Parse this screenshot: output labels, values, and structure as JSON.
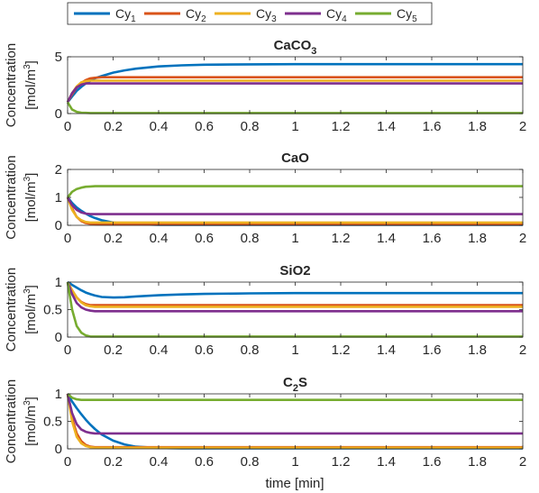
{
  "legend": [
    {
      "base": "Cy",
      "sub": "1"
    },
    {
      "base": "Cy",
      "sub": "2"
    },
    {
      "base": "Cy",
      "sub": "3"
    },
    {
      "base": "Cy",
      "sub": "4"
    },
    {
      "base": "Cy",
      "sub": "5"
    }
  ],
  "xlabel": "time [min]",
  "ylabel_line1": "Concentration",
  "ylabel_line2_base": "[mol/m",
  "ylabel_line2_sup": "3",
  "ylabel_line2_end": "]",
  "colors": [
    "#0072BD",
    "#D95319",
    "#EDB120",
    "#7E2F8E",
    "#77AC30"
  ],
  "chart_data": [
    {
      "type": "line",
      "title": "CaCO",
      "title_sub": "3",
      "title_tail": "",
      "xlim": [
        0,
        2
      ],
      "ylim": [
        0,
        5
      ],
      "yticks": [
        0,
        5
      ],
      "xticks": [
        0,
        0.2,
        0.4,
        0.6,
        0.8,
        1,
        1.2,
        1.4,
        1.6,
        1.8,
        2
      ],
      "x": [
        0,
        0.02,
        0.04,
        0.06,
        0.08,
        0.1,
        0.12,
        0.15,
        0.2,
        0.25,
        0.3,
        0.4,
        0.5,
        0.6,
        0.8,
        1,
        1.2,
        1.4,
        1.6,
        1.8,
        2
      ],
      "series": [
        {
          "values": [
            1.0,
            1.5,
            2.0,
            2.35,
            2.65,
            2.9,
            3.1,
            3.3,
            3.6,
            3.8,
            3.95,
            4.15,
            4.25,
            4.3,
            4.33,
            4.35,
            4.35,
            4.35,
            4.35,
            4.35,
            4.35
          ]
        },
        {
          "values": [
            1.0,
            1.7,
            2.3,
            2.7,
            2.95,
            3.1,
            3.15,
            3.2,
            3.2,
            3.2,
            3.2,
            3.2,
            3.2,
            3.2,
            3.2,
            3.2,
            3.2,
            3.2,
            3.2,
            3.2,
            3.2
          ]
        },
        {
          "values": [
            1.0,
            1.8,
            2.4,
            2.75,
            2.85,
            2.9,
            2.9,
            2.9,
            2.9,
            2.9,
            2.9,
            2.9,
            2.9,
            2.9,
            2.9,
            2.9,
            2.9,
            2.9,
            2.9,
            2.9,
            2.9
          ]
        },
        {
          "values": [
            1.0,
            1.8,
            2.3,
            2.55,
            2.65,
            2.65,
            2.65,
            2.65,
            2.65,
            2.65,
            2.65,
            2.65,
            2.65,
            2.65,
            2.65,
            2.65,
            2.65,
            2.65,
            2.65,
            2.65,
            2.65
          ]
        },
        {
          "values": [
            1.0,
            0.35,
            0.15,
            0.08,
            0.06,
            0.05,
            0.05,
            0.05,
            0.05,
            0.05,
            0.05,
            0.05,
            0.05,
            0.05,
            0.05,
            0.05,
            0.05,
            0.05,
            0.05,
            0.05,
            0.05
          ]
        }
      ]
    },
    {
      "type": "line",
      "title": "CaO",
      "title_sub": "",
      "title_tail": "",
      "xlim": [
        0,
        2
      ],
      "ylim": [
        0,
        2
      ],
      "yticks": [
        0,
        1,
        2
      ],
      "xticks": [
        0,
        0.2,
        0.4,
        0.6,
        0.8,
        1,
        1.2,
        1.4,
        1.6,
        1.8,
        2
      ],
      "x": [
        0,
        0.02,
        0.04,
        0.06,
        0.08,
        0.1,
        0.12,
        0.15,
        0.2,
        0.25,
        0.3,
        0.4,
        0.5,
        0.6,
        0.8,
        1,
        1.2,
        1.4,
        1.6,
        1.8,
        2
      ],
      "series": [
        {
          "values": [
            1.0,
            0.8,
            0.64,
            0.52,
            0.42,
            0.33,
            0.26,
            0.18,
            0.1,
            0.06,
            0.04,
            0.02,
            0.02,
            0.02,
            0.02,
            0.02,
            0.02,
            0.02,
            0.02,
            0.02,
            0.02
          ]
        },
        {
          "values": [
            1.0,
            0.6,
            0.3,
            0.15,
            0.08,
            0.05,
            0.04,
            0.03,
            0.03,
            0.03,
            0.03,
            0.03,
            0.03,
            0.03,
            0.03,
            0.03,
            0.03,
            0.03,
            0.03,
            0.03,
            0.03
          ]
        },
        {
          "values": [
            1.0,
            0.55,
            0.3,
            0.18,
            0.12,
            0.1,
            0.1,
            0.1,
            0.1,
            0.1,
            0.1,
            0.1,
            0.1,
            0.1,
            0.1,
            0.1,
            0.1,
            0.1,
            0.1,
            0.1,
            0.1
          ]
        },
        {
          "values": [
            1.0,
            0.72,
            0.55,
            0.46,
            0.42,
            0.4,
            0.4,
            0.4,
            0.4,
            0.4,
            0.4,
            0.4,
            0.4,
            0.4,
            0.4,
            0.4,
            0.4,
            0.4,
            0.4,
            0.4,
            0.4
          ]
        },
        {
          "values": [
            1.0,
            1.2,
            1.3,
            1.35,
            1.38,
            1.39,
            1.4,
            1.4,
            1.4,
            1.4,
            1.4,
            1.4,
            1.4,
            1.4,
            1.4,
            1.4,
            1.4,
            1.4,
            1.4,
            1.4,
            1.4
          ]
        }
      ]
    },
    {
      "type": "line",
      "title": "SiO2",
      "title_sub": "",
      "title_tail": "",
      "xlim": [
        0,
        2
      ],
      "ylim": [
        0,
        1
      ],
      "yticks": [
        0,
        0.5,
        1
      ],
      "xticks": [
        0,
        0.2,
        0.4,
        0.6,
        0.8,
        1,
        1.2,
        1.4,
        1.6,
        1.8,
        2
      ],
      "x": [
        0,
        0.02,
        0.04,
        0.06,
        0.08,
        0.1,
        0.12,
        0.15,
        0.2,
        0.25,
        0.3,
        0.4,
        0.5,
        0.6,
        0.8,
        1,
        1.2,
        1.4,
        1.6,
        1.8,
        2
      ],
      "series": [
        {
          "values": [
            1.0,
            0.95,
            0.9,
            0.85,
            0.81,
            0.78,
            0.755,
            0.73,
            0.72,
            0.725,
            0.74,
            0.76,
            0.775,
            0.785,
            0.795,
            0.8,
            0.8,
            0.8,
            0.8,
            0.8,
            0.8
          ]
        },
        {
          "values": [
            1.0,
            0.85,
            0.72,
            0.64,
            0.6,
            0.58,
            0.58,
            0.58,
            0.58,
            0.58,
            0.58,
            0.58,
            0.58,
            0.58,
            0.58,
            0.58,
            0.58,
            0.58,
            0.58,
            0.58,
            0.58
          ]
        },
        {
          "values": [
            1.0,
            0.85,
            0.72,
            0.63,
            0.58,
            0.56,
            0.55,
            0.55,
            0.55,
            0.55,
            0.55,
            0.55,
            0.55,
            0.55,
            0.55,
            0.55,
            0.55,
            0.55,
            0.55,
            0.55,
            0.55
          ]
        },
        {
          "values": [
            1.0,
            0.78,
            0.62,
            0.54,
            0.5,
            0.48,
            0.47,
            0.47,
            0.47,
            0.47,
            0.47,
            0.47,
            0.47,
            0.47,
            0.47,
            0.47,
            0.47,
            0.47,
            0.47,
            0.47,
            0.47
          ]
        },
        {
          "values": [
            1.0,
            0.5,
            0.2,
            0.08,
            0.03,
            0.01,
            0.01,
            0.01,
            0.01,
            0.01,
            0.01,
            0.01,
            0.01,
            0.01,
            0.01,
            0.01,
            0.01,
            0.01,
            0.01,
            0.01,
            0.01
          ]
        }
      ]
    },
    {
      "type": "line",
      "title": "C",
      "title_sub": "2",
      "title_tail": "S",
      "xlim": [
        0,
        2
      ],
      "ylim": [
        0,
        1
      ],
      "yticks": [
        0,
        0.5,
        1
      ],
      "xticks": [
        0,
        0.2,
        0.4,
        0.6,
        0.8,
        1,
        1.2,
        1.4,
        1.6,
        1.8,
        2
      ],
      "x": [
        0,
        0.02,
        0.04,
        0.06,
        0.08,
        0.1,
        0.12,
        0.15,
        0.2,
        0.25,
        0.3,
        0.4,
        0.5,
        0.6,
        0.8,
        1,
        1.2,
        1.4,
        1.6,
        1.8,
        2
      ],
      "series": [
        {
          "values": [
            1.0,
            0.86,
            0.74,
            0.63,
            0.53,
            0.44,
            0.36,
            0.26,
            0.15,
            0.08,
            0.04,
            0.015,
            0.01,
            0.01,
            0.01,
            0.01,
            0.01,
            0.01,
            0.01,
            0.01,
            0.01
          ]
        },
        {
          "values": [
            1.0,
            0.55,
            0.28,
            0.14,
            0.07,
            0.04,
            0.03,
            0.03,
            0.03,
            0.03,
            0.03,
            0.03,
            0.03,
            0.03,
            0.03,
            0.03,
            0.03,
            0.03,
            0.03,
            0.03,
            0.03
          ]
        },
        {
          "values": [
            1.0,
            0.5,
            0.22,
            0.1,
            0.05,
            0.03,
            0.02,
            0.02,
            0.02,
            0.02,
            0.02,
            0.02,
            0.02,
            0.02,
            0.02,
            0.02,
            0.02,
            0.02,
            0.02,
            0.02,
            0.02
          ]
        },
        {
          "values": [
            1.0,
            0.65,
            0.45,
            0.35,
            0.31,
            0.29,
            0.28,
            0.28,
            0.28,
            0.28,
            0.28,
            0.28,
            0.28,
            0.28,
            0.28,
            0.28,
            0.28,
            0.28,
            0.28,
            0.28,
            0.28
          ]
        },
        {
          "values": [
            1.0,
            0.93,
            0.9,
            0.89,
            0.89,
            0.89,
            0.89,
            0.89,
            0.89,
            0.89,
            0.89,
            0.89,
            0.89,
            0.89,
            0.89,
            0.89,
            0.89,
            0.89,
            0.89,
            0.89,
            0.89
          ]
        }
      ]
    }
  ]
}
